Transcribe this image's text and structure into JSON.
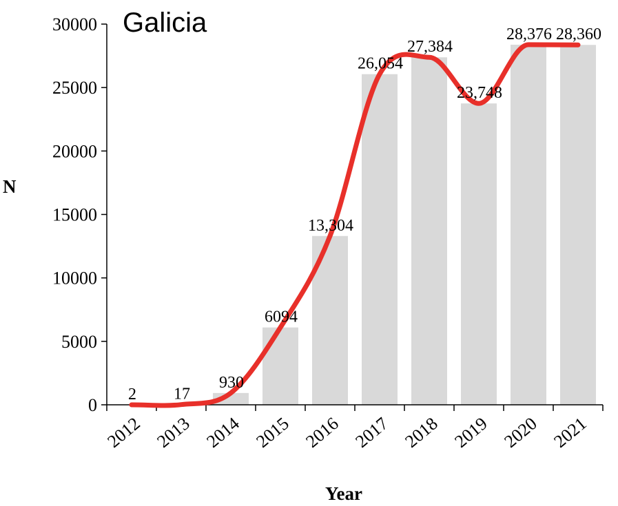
{
  "chart_data": {
    "type": "bar",
    "title": "Galicia",
    "xlabel": "Year",
    "ylabel": "N",
    "ylim": [
      0,
      30000
    ],
    "yticks": [
      0,
      5000,
      10000,
      15000,
      20000,
      25000,
      30000
    ],
    "categories": [
      "2012",
      "2013",
      "2014",
      "2015",
      "2016",
      "2017",
      "2018",
      "2019",
      "2020",
      "2021"
    ],
    "values": [
      2,
      17,
      930,
      6094,
      13304,
      26054,
      27384,
      23748,
      28376,
      28360
    ],
    "data_labels": [
      "2",
      "17",
      "930",
      "6094",
      "13,304",
      "26,054",
      "27,384",
      "23,748",
      "28,376",
      "28,360"
    ],
    "bar_color": "#d9d9d9",
    "trend_color": "#e8302a",
    "grid": false
  }
}
